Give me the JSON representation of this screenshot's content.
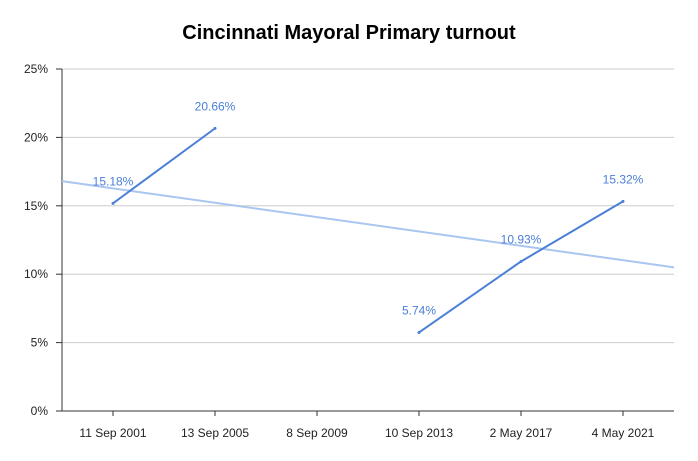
{
  "chart_data": {
    "type": "line",
    "title": "Cincinnati Mayoral Primary turnout",
    "xlabel": "",
    "ylabel": "",
    "categories": [
      "11 Sep 2001",
      "13 Sep 2005",
      "8 Sep 2009",
      "10 Sep 2013",
      "2 May 2017",
      "4 May 2021"
    ],
    "y_ticks": [
      "0%",
      "5%",
      "10%",
      "15%",
      "20%",
      "25%"
    ],
    "ylim": [
      0,
      25
    ],
    "grid": true,
    "legend": "none",
    "series": [
      {
        "values": [
          15.18,
          20.66,
          null,
          5.74,
          10.93,
          15.32
        ],
        "labels": [
          "15.18%",
          "20.66%",
          "",
          "5.74%",
          "10.93%",
          "15.32%"
        ],
        "color": "#4a7fd8"
      }
    ],
    "trendline": {
      "type": "linear",
      "color": "#a9c6f0",
      "y_at_left_edge": 16.8,
      "y_at_right_edge": 10.5
    }
  }
}
